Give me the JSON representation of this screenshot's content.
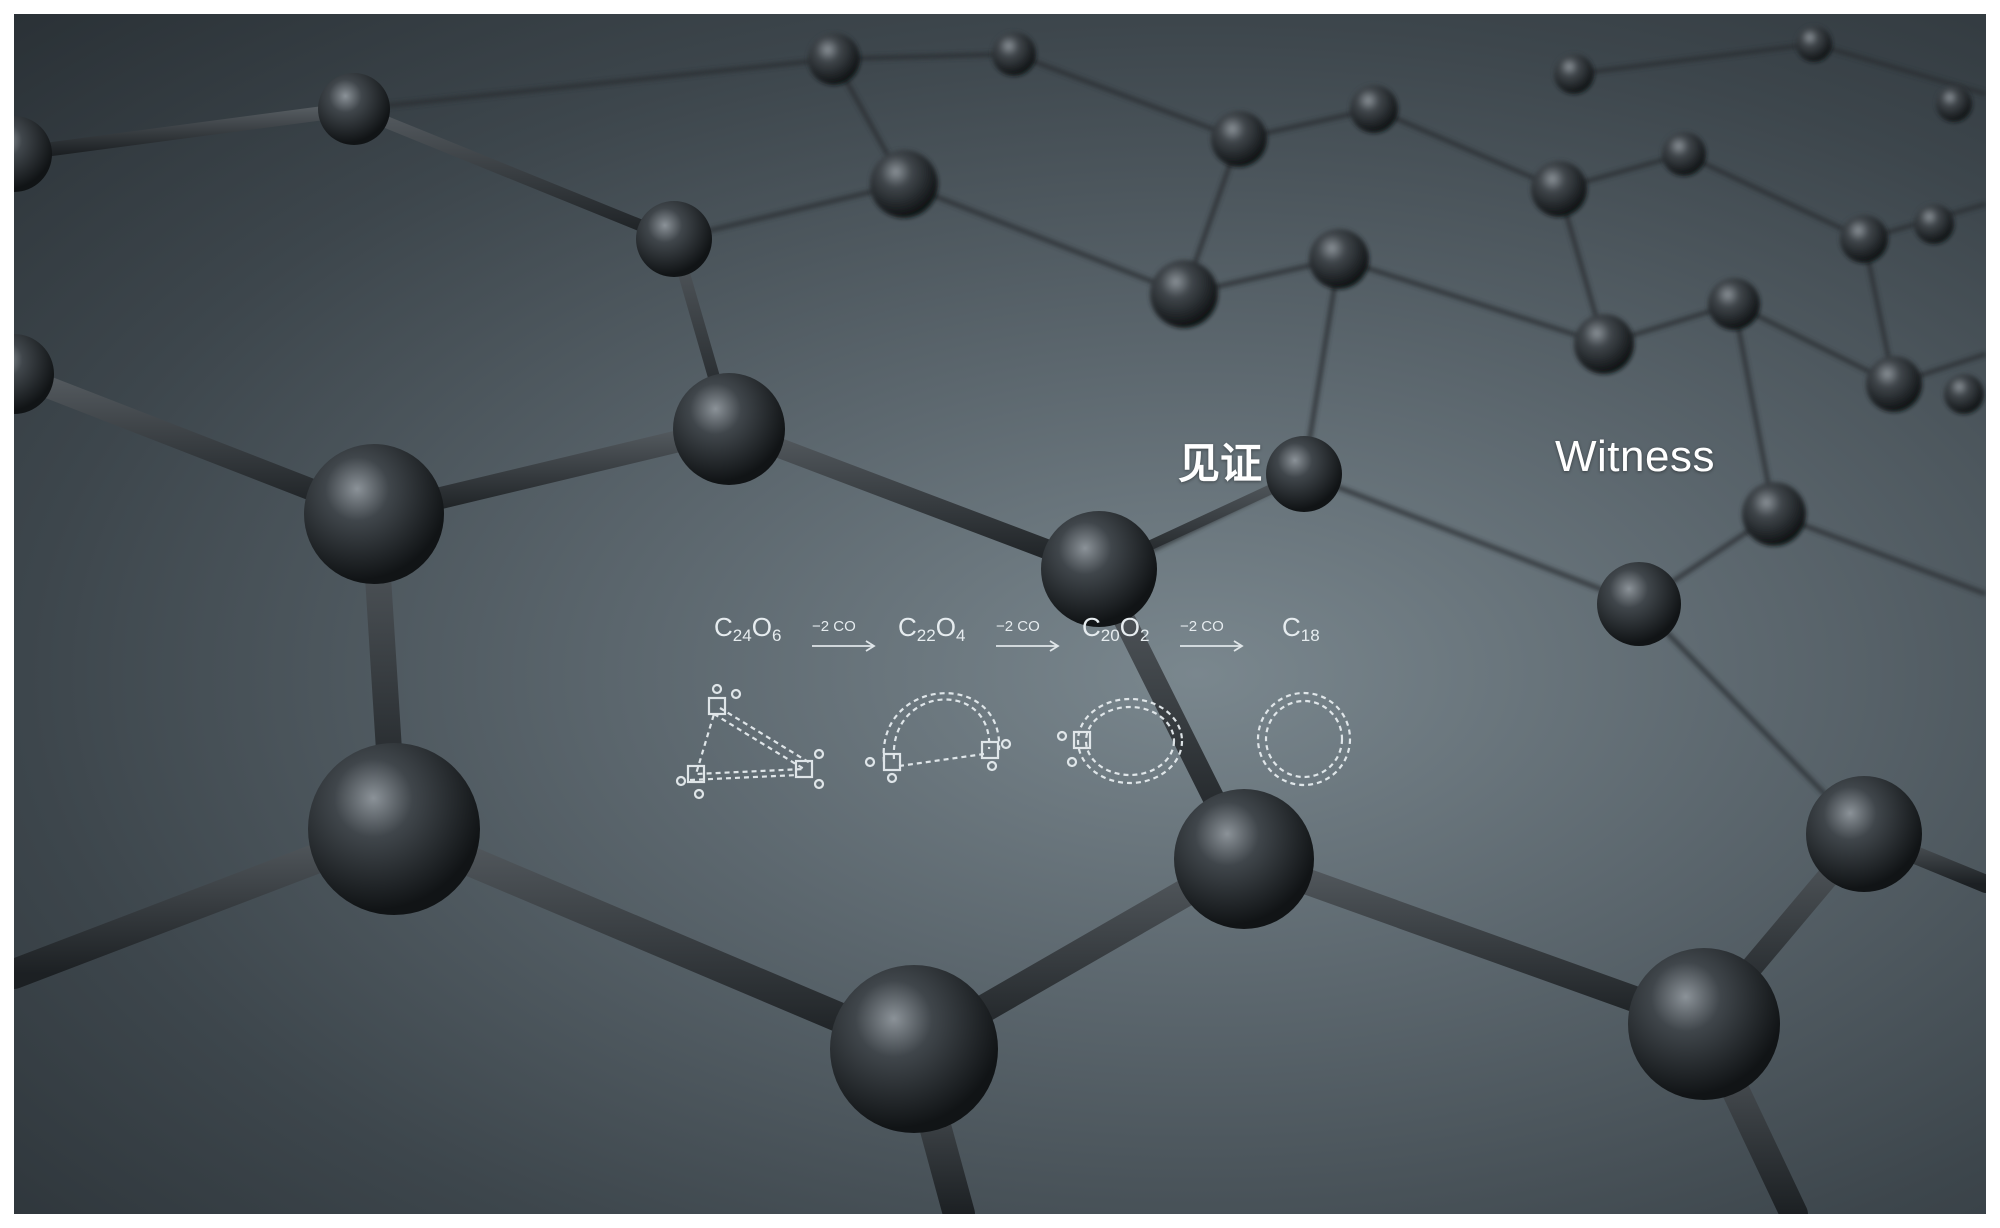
{
  "overlay": {
    "title_cn": "见证",
    "title_en": "Witness"
  },
  "reaction": {
    "species": [
      {
        "base": "C",
        "n1": "24",
        "o": "O",
        "n2": "6"
      },
      {
        "base": "C",
        "n1": "22",
        "o": "O",
        "n2": "4"
      },
      {
        "base": "C",
        "n1": "20",
        "o": "O",
        "n2": "2"
      },
      {
        "base": "C",
        "n1": "18",
        "o": "",
        "n2": ""
      }
    ],
    "step_label": "−2 CO"
  },
  "colors": {
    "atom": "#2b2f33",
    "bond": "#3a3f44",
    "line_art": "#e6ecef"
  }
}
